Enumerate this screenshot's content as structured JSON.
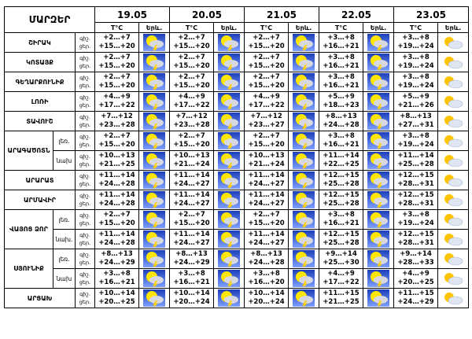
{
  "header": {
    "title": "ՄԱՐԶԵՐ",
    "dates": [
      "19.05",
      "20.05",
      "21.05",
      "22.05",
      "23.05"
    ],
    "temp_label": "T°C",
    "icon_label": "Երև."
  },
  "period_labels": [
    "գիշ.",
    "ցեր."
  ],
  "regions": [
    {
      "name": "ՇԻՐԱԿ",
      "rows": [
        {
          "night": [
            "+2…+7",
            "+2…+7",
            "+2…+7",
            "+3…+8",
            "+3…+8"
          ],
          "day": [
            "+15…+20",
            "+15…+20",
            "+15…+20",
            "+16…+21",
            "+19…+24"
          ]
        }
      ]
    },
    {
      "name": "ԿՈՏԱՅՔ",
      "rows": [
        {
          "night": [
            "+2…+7",
            "+2…+7",
            "+2…+7",
            "+3…+8",
            "+3…+8"
          ],
          "day": [
            "+15…+20",
            "+15…+20",
            "+15…+20",
            "+16…+21",
            "+19…+24"
          ]
        }
      ]
    },
    {
      "name": "ԳԵՂԱՐՔՈՒՆԻՔ",
      "rows": [
        {
          "night": [
            "+2…+7",
            "+2…+7",
            "+2…+7",
            "+3…+8",
            "+3…+8"
          ],
          "day": [
            "+15…+20",
            "+15…+20",
            "+15…+20",
            "+16…+21",
            "+19…+24"
          ]
        }
      ]
    },
    {
      "name": "ԼՈՌԻ",
      "rows": [
        {
          "night": [
            "+4…+9",
            "+4…+9",
            "+4…+9",
            "+5…+9",
            "+5…+9"
          ],
          "day": [
            "+17…+22",
            "+17…+22",
            "+17…+22",
            "+18…+23",
            "+21…+26"
          ]
        }
      ]
    },
    {
      "name": "ՏԱՎՈՒՇ",
      "rows": [
        {
          "night": [
            "+7…+12",
            "+7…+12",
            "+7…+12",
            "+8…+13",
            "+8…+13"
          ],
          "day": [
            "+23…+28",
            "+23…+28",
            "+23…+27",
            "+24…+28",
            "+27…+31"
          ]
        }
      ]
    },
    {
      "name": "ԱՐԱԳԱԾՈՏՆ",
      "rows": [
        {
          "sub": "լեռ.",
          "night": [
            "+2…+7",
            "+2…+7",
            "+2…+7",
            "+3…+8",
            "+3…+8"
          ],
          "day": [
            "+15…+20",
            "+15…+20",
            "+15…+20",
            "+16…+21",
            "+19…+24"
          ]
        },
        {
          "sub": "նախ",
          "night": [
            "+10…+13",
            "+10…+13",
            "+10…+13",
            "+11…+14",
            "+11…+14"
          ],
          "day": [
            "+21…+25",
            "+21…+24",
            "+21…+24",
            "+22…+25",
            "+25…+28"
          ]
        }
      ]
    },
    {
      "name": "ԱՐԱՐԱՏ",
      "rows": [
        {
          "night": [
            "+11…+14",
            "+11…+14",
            "+11…+14",
            "+12…+15",
            "+12…+15"
          ],
          "day": [
            "+24…+28",
            "+24…+27",
            "+24…+27",
            "+25…+28",
            "+28…+31"
          ]
        }
      ]
    },
    {
      "name": "ԱՐՄԱՎԻՐ",
      "rows": [
        {
          "night": [
            "+11…+14",
            "+11…+14",
            "+11…+14",
            "+12…+15",
            "+12…+15"
          ],
          "day": [
            "+24…+28",
            "+24…+27",
            "+24…+27",
            "+25…+28",
            "+28…+31"
          ]
        }
      ]
    },
    {
      "name": "ՎԱՅՈՑ ՁՈՐ",
      "rows": [
        {
          "sub": "լեռ.",
          "night": [
            "+2…+7",
            "+2…+7",
            "+2…+7",
            "+3…+8",
            "+3…+8"
          ],
          "day": [
            "+15…+20",
            "+15…+20",
            "+15…+20",
            "+16…+21",
            "+19…+24"
          ]
        },
        {
          "sub": "նախ.",
          "night": [
            "+11…+14",
            "+11…+14",
            "+11…+14",
            "+12…+15",
            "+12…+15"
          ],
          "day": [
            "+24…+28",
            "+24…+27",
            "+24…+27",
            "+25…+28",
            "+28…+31"
          ]
        }
      ]
    },
    {
      "name": "ՍՅՈՒՆԻՔ",
      "rows": [
        {
          "sub": "լեռ.",
          "night": [
            "+8…+13",
            "+8…+13",
            "+8…+13",
            "+9…+14",
            "+9…+14"
          ],
          "day": [
            "+24…+29",
            "+24…+29",
            "+24…+28",
            "+25…+30",
            "+28…+33"
          ]
        },
        {
          "sub": "նախ",
          "night": [
            "+3…+8",
            "+3…+8",
            "+3…+8",
            "+4…+9",
            "+4…+9"
          ],
          "day": [
            "+16…+21",
            "+16…+21",
            "+16…+20",
            "+17…+22",
            "+20…+25"
          ]
        }
      ]
    },
    {
      "name": "ԱՐՑԱԽ",
      "rows": [
        {
          "night": [
            "+10…+14",
            "+10…+14",
            "+10…+14",
            "+11…+15",
            "+11…+15"
          ],
          "day": [
            "+20…+25",
            "+20…+24",
            "+20…+24",
            "+21…+25",
            "+24…+29"
          ]
        }
      ]
    }
  ]
}
